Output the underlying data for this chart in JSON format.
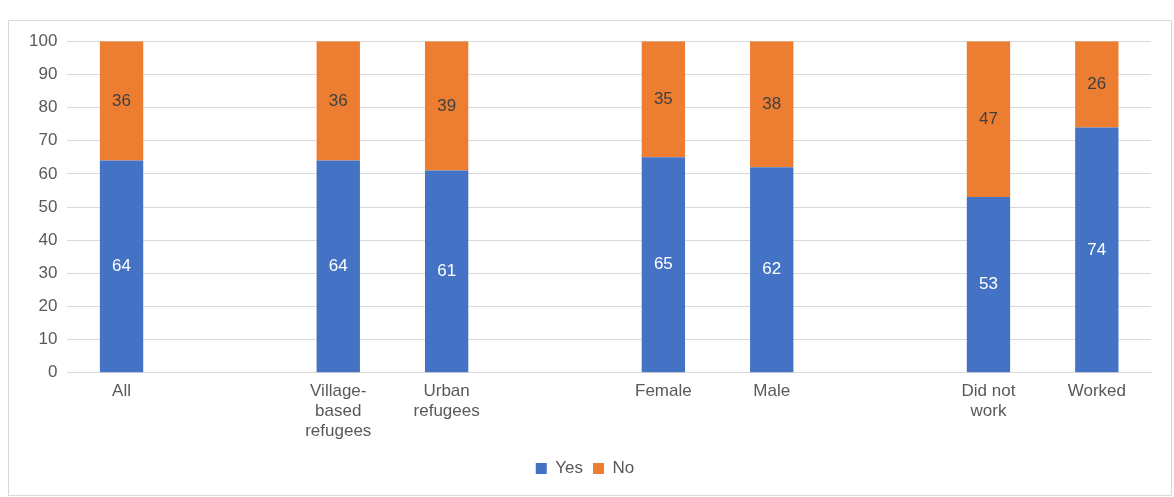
{
  "chart_data": {
    "type": "bar",
    "stacked": true,
    "categories": [
      "All",
      null,
      "Village-based refugees",
      "Urban refugees",
      null,
      "Female",
      "Male",
      null,
      "Did not work",
      "Worked"
    ],
    "series": [
      {
        "name": "Yes",
        "color": "#4472c4",
        "values": [
          64,
          null,
          64,
          61,
          null,
          65,
          62,
          null,
          53,
          74
        ]
      },
      {
        "name": "No",
        "color": "#ed7d31",
        "values": [
          36,
          null,
          36,
          39,
          null,
          35,
          38,
          null,
          47,
          26
        ]
      }
    ],
    "ylim": [
      0,
      100
    ],
    "yticks": [
      0,
      10,
      20,
      30,
      40,
      50,
      60,
      70,
      80,
      90,
      100
    ],
    "grid": "y",
    "legend": "bottom",
    "data_labels": true
  }
}
